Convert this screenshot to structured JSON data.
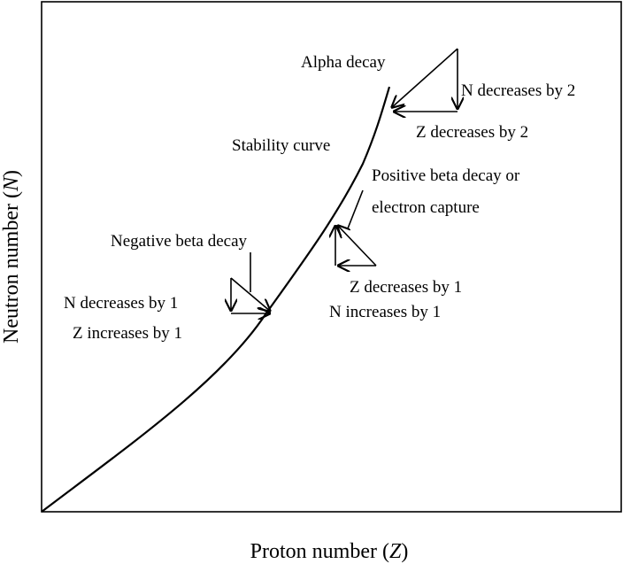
{
  "diagram": {
    "y_label": {
      "text": "Neutron number (",
      "var": "N",
      "close": ")"
    },
    "x_label": {
      "text": "Proton number (",
      "var": "Z",
      "close": ")"
    },
    "curve_label": "Stability curve",
    "alpha": {
      "title": "Alpha decay",
      "n_change": "N decreases by 2",
      "z_change": "Z decreases by 2"
    },
    "positive_beta": {
      "title_1": "Positive beta decay or",
      "title_2": "electron capture",
      "z_change": "Z decreases by 1",
      "n_change": "N increases by 1"
    },
    "negative_beta": {
      "title": "Negative beta decay",
      "n_change": "N decreases by 1",
      "z_change": "Z  increases by 1"
    }
  }
}
